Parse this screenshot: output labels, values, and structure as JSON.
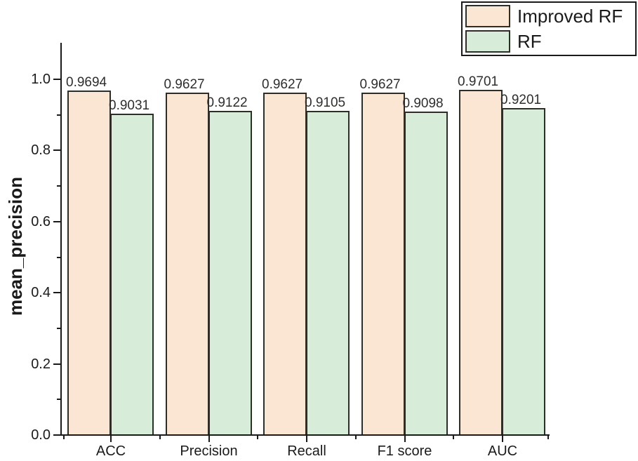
{
  "chart_data": {
    "type": "bar",
    "title": "",
    "categories": [
      "ACC",
      "Precision",
      "Recall",
      "F1 score",
      "AUC"
    ],
    "series": [
      {
        "name": "Improved RF",
        "color": "#fbe5d3",
        "edge_color": "#2e2e28",
        "values": [
          0.9694,
          0.9627,
          0.9627,
          0.9627,
          0.9701
        ]
      },
      {
        "name": "RF",
        "color": "#d8ecda",
        "edge_color": "#2e2e28",
        "values": [
          0.9031,
          0.9122,
          0.9105,
          0.9098,
          0.9201
        ]
      }
    ],
    "xlabel": "",
    "ylabel": "mean_precision",
    "ylim": [
      0.0,
      1.1
    ],
    "y_major_ticks": [
      0.0,
      0.2,
      0.4,
      0.6,
      0.8,
      1.0
    ],
    "y_minor_ticks": [
      0.1,
      0.3,
      0.5,
      0.7,
      0.9
    ],
    "value_label_decimals": 4,
    "grid": false,
    "legend_position": "top-right",
    "axis_color": "#1a1a1a",
    "text_color": "#1a1a1a",
    "background": "#ffffff"
  }
}
